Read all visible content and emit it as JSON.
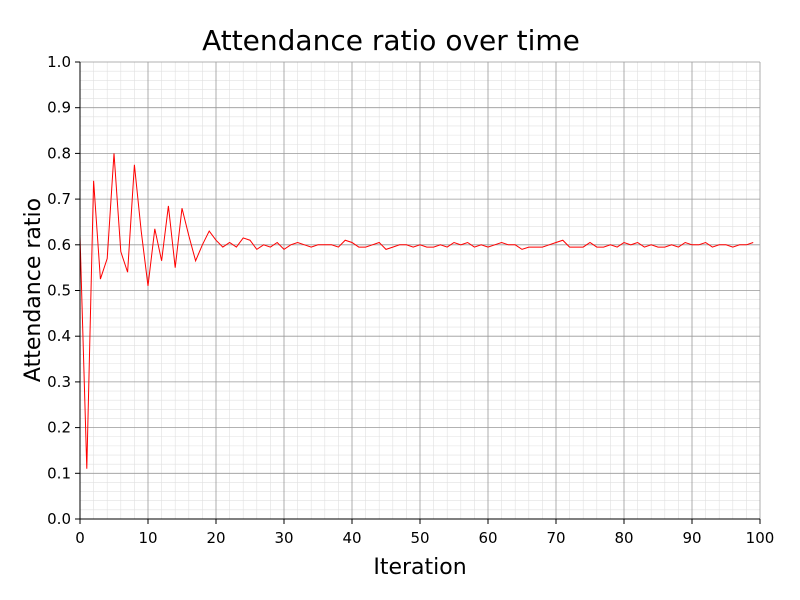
{
  "chart_data": {
    "type": "line",
    "title": "Attendance ratio over time",
    "xlabel": "Iteration",
    "ylabel": "Attendance ratio",
    "xlim": [
      0,
      100
    ],
    "ylim": [
      0.0,
      1.0
    ],
    "x_ticks": [
      "0",
      "10",
      "20",
      "30",
      "40",
      "50",
      "60",
      "70",
      "80",
      "90",
      "100"
    ],
    "y_ticks": [
      "0.0",
      "0.1",
      "0.2",
      "0.3",
      "0.4",
      "0.5",
      "0.6",
      "0.7",
      "0.8",
      "0.9",
      "1.0"
    ],
    "grid": true,
    "minor_grid": true,
    "series": [
      {
        "color": "#ff0000",
        "x": [
          0,
          1,
          2,
          3,
          4,
          5,
          6,
          7,
          8,
          9,
          10,
          11,
          12,
          13,
          14,
          15,
          16,
          17,
          18,
          19,
          20,
          21,
          22,
          23,
          24,
          25,
          26,
          27,
          28,
          29,
          30,
          31,
          32,
          33,
          34,
          35,
          36,
          37,
          38,
          39,
          40,
          41,
          42,
          43,
          44,
          45,
          46,
          47,
          48,
          49,
          50,
          51,
          52,
          53,
          54,
          55,
          56,
          57,
          58,
          59,
          60,
          61,
          62,
          63,
          64,
          65,
          66,
          67,
          68,
          69,
          70,
          71,
          72,
          73,
          74,
          75,
          76,
          77,
          78,
          79,
          80,
          81,
          82,
          83,
          84,
          85,
          86,
          87,
          88,
          89,
          90,
          91,
          92,
          93,
          94,
          95,
          96,
          97,
          98,
          99
        ],
        "values": [
          0.62,
          0.11,
          0.74,
          0.525,
          0.57,
          0.8,
          0.585,
          0.54,
          0.775,
          0.63,
          0.51,
          0.635,
          0.565,
          0.685,
          0.55,
          0.68,
          0.62,
          0.565,
          0.6,
          0.63,
          0.61,
          0.595,
          0.605,
          0.595,
          0.615,
          0.61,
          0.59,
          0.6,
          0.595,
          0.605,
          0.59,
          0.6,
          0.605,
          0.6,
          0.595,
          0.6,
          0.6,
          0.6,
          0.595,
          0.61,
          0.605,
          0.595,
          0.595,
          0.6,
          0.605,
          0.59,
          0.595,
          0.6,
          0.6,
          0.595,
          0.6,
          0.595,
          0.595,
          0.6,
          0.595,
          0.605,
          0.6,
          0.605,
          0.595,
          0.6,
          0.595,
          0.6,
          0.605,
          0.6,
          0.6,
          0.59,
          0.595,
          0.595,
          0.595,
          0.6,
          0.605,
          0.61,
          0.595,
          0.595,
          0.595,
          0.605,
          0.595,
          0.595,
          0.6,
          0.595,
          0.605,
          0.6,
          0.605,
          0.595,
          0.6,
          0.595,
          0.595,
          0.6,
          0.595,
          0.605,
          0.6,
          0.6,
          0.605,
          0.595,
          0.6,
          0.6,
          0.595,
          0.6,
          0.6,
          0.605
        ]
      }
    ]
  }
}
